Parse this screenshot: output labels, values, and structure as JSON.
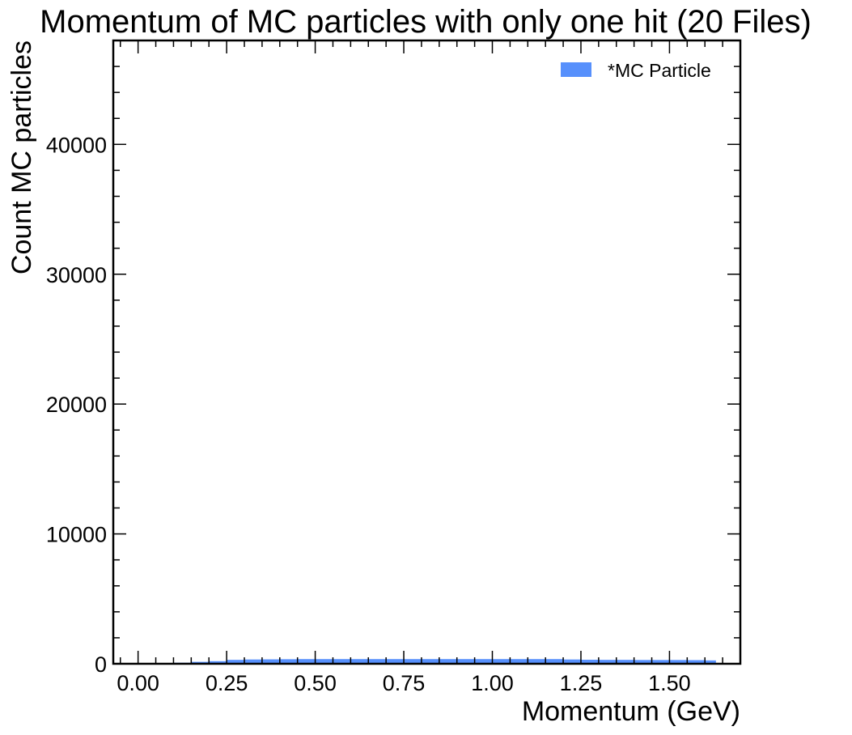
{
  "chart_data": {
    "type": "bar",
    "title": "Momentum of MC particles with only one hit (20 Files)",
    "xlabel": "Momentum (GeV)",
    "ylabel": "Count MC particles",
    "xlim": [
      -0.07,
      1.7
    ],
    "ylim": [
      0,
      48000
    ],
    "grid": false,
    "legend_placement": "top-right",
    "x_ticks": [
      "0.00",
      "0.25",
      "0.50",
      "0.75",
      "1.00",
      "1.25",
      "1.50"
    ],
    "y_ticks": [
      "0",
      "10000",
      "20000",
      "30000",
      "40000"
    ],
    "bin_edges": [
      0.0,
      0.05,
      0.1,
      0.15,
      0.2,
      0.25,
      0.3,
      0.35,
      0.4,
      0.45,
      0.5,
      0.55,
      0.6,
      0.65,
      0.7,
      0.75,
      0.8,
      0.85,
      0.9,
      0.95,
      1.0,
      1.05,
      1.1,
      1.15,
      1.2,
      1.25,
      1.3,
      1.35,
      1.4,
      1.45,
      1.5,
      1.55,
      1.6,
      1.63
    ],
    "series": [
      {
        "name": "*MC Particle",
        "color": "#5790fc",
        "values": [
          60,
          20,
          80,
          150,
          200,
          300,
          330,
          340,
          350,
          360,
          360,
          360,
          360,
          360,
          360,
          360,
          360,
          360,
          360,
          360,
          360,
          360,
          360,
          360,
          330,
          310,
          300,
          300,
          290,
          290,
          290,
          280,
          260
        ]
      }
    ]
  }
}
